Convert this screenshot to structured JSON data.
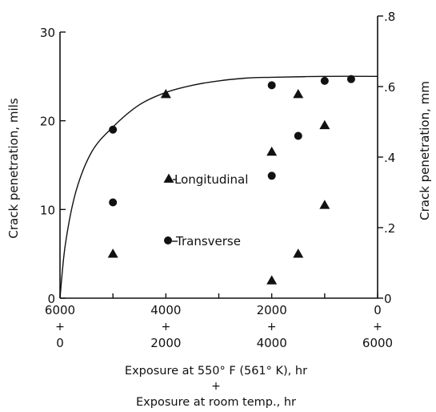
{
  "chart_data": {
    "type": "scatter",
    "xlabel": "Exposure at 550° F (561° K), hr",
    "xlabel_plus": "+",
    "xlabel2": "Exposure at room temp., hr",
    "ylabel_left": "Crack penetration, mils",
    "ylabel_right": "Crack penetration, mm",
    "xlim": [
      6000,
      0
    ],
    "ylim_left": [
      0,
      30
    ],
    "ylim_right": [
      0,
      0.8
    ],
    "x_ticks_top": [
      "6000",
      "4000",
      "2000",
      "0"
    ],
    "x_ticks_plus": [
      "+",
      "+",
      "+",
      "+"
    ],
    "x_ticks_bottom": [
      "0",
      "2000",
      "4000",
      "6000"
    ],
    "y_ticks_left": [
      "0",
      "10",
      "20",
      "30"
    ],
    "y_ticks_right": [
      "0",
      ".2",
      ".4",
      ".6",
      ".8"
    ],
    "series": [
      {
        "name": "Longitudinal",
        "marker": "triangle",
        "points": [
          {
            "x": 5000,
            "y": 5
          },
          {
            "x": 4000,
            "y": 23
          },
          {
            "x": 2000,
            "y": 2
          },
          {
            "x": 2000,
            "y": 16.5
          },
          {
            "x": 1500,
            "y": 5
          },
          {
            "x": 1500,
            "y": 23
          },
          {
            "x": 1000,
            "y": 10.5
          },
          {
            "x": 1000,
            "y": 19.5
          }
        ]
      },
      {
        "name": "Transverse",
        "marker": "circle",
        "points": [
          {
            "x": 5000,
            "y": 10.8
          },
          {
            "x": 5000,
            "y": 19
          },
          {
            "x": 2000,
            "y": 13.8
          },
          {
            "x": 2000,
            "y": 24
          },
          {
            "x": 1500,
            "y": 18.3
          },
          {
            "x": 1000,
            "y": 24.5
          },
          {
            "x": 500,
            "y": 24.7
          }
        ]
      }
    ],
    "fit_curve": {
      "style": "solid",
      "points": [
        {
          "x": 6000,
          "y": 0
        },
        {
          "x": 5900,
          "y": 6
        },
        {
          "x": 5700,
          "y": 12
        },
        {
          "x": 5400,
          "y": 16.5
        },
        {
          "x": 5000,
          "y": 19.3
        },
        {
          "x": 4500,
          "y": 21.8
        },
        {
          "x": 4000,
          "y": 23.2
        },
        {
          "x": 3500,
          "y": 24
        },
        {
          "x": 3000,
          "y": 24.5
        },
        {
          "x": 2500,
          "y": 24.8
        },
        {
          "x": 2000,
          "y": 24.9
        },
        {
          "x": 1000,
          "y": 25
        },
        {
          "x": 0,
          "y": 25
        }
      ]
    }
  }
}
